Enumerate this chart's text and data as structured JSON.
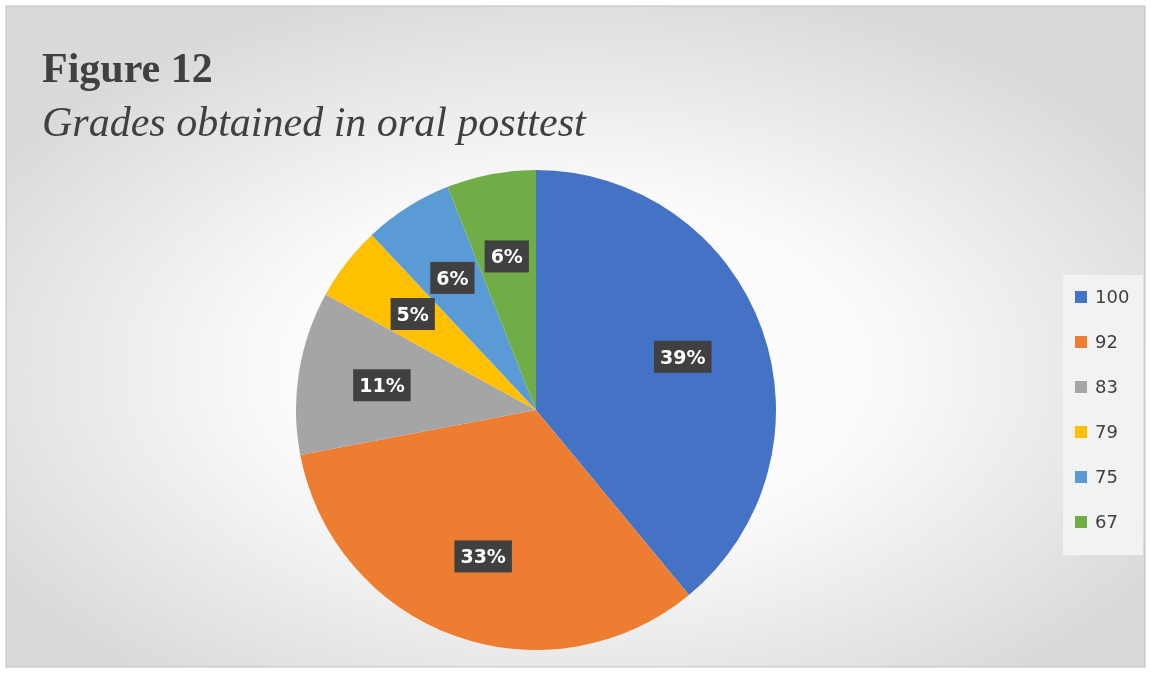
{
  "chart_data": {
    "type": "pie",
    "title": "Figure 12",
    "subtitle": "Grades obtained in oral posttest",
    "categories": [
      "100",
      "92",
      "83",
      "79",
      "75",
      "67"
    ],
    "values": [
      39,
      33,
      11,
      5,
      6,
      6
    ],
    "colors": [
      "#4472c4",
      "#ed7d31",
      "#a5a5a5",
      "#ffc000",
      "#5b9bd5",
      "#70ad47"
    ],
    "value_labels": [
      "39%",
      "33%",
      "11%",
      "5%",
      "6%",
      "6%"
    ],
    "legend": "right"
  }
}
